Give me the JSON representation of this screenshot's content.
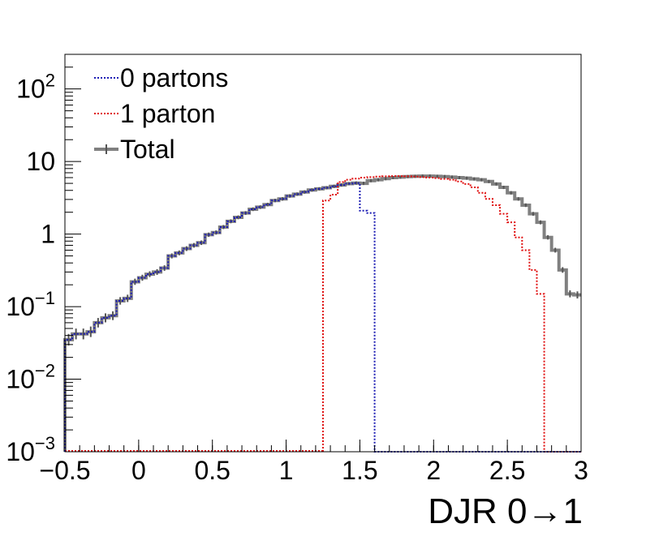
{
  "chart_data": {
    "type": "histogram-step-line",
    "xlabel": "DJR 0→1",
    "ylabel": "",
    "xlim": [
      -0.5,
      3.0
    ],
    "ylim": [
      0.001,
      300
    ],
    "ylog": true,
    "grid": false,
    "legend_position": "top-left",
    "x_ticks": [
      {
        "value": -0.5,
        "label": "−0.5"
      },
      {
        "value": 0,
        "label": "0"
      },
      {
        "value": 0.5,
        "label": "0.5"
      },
      {
        "value": 1,
        "label": "1"
      },
      {
        "value": 1.5,
        "label": "1.5"
      },
      {
        "value": 2,
        "label": "2"
      },
      {
        "value": 2.5,
        "label": "2.5"
      },
      {
        "value": 3,
        "label": "3"
      }
    ],
    "y_ticks": [
      {
        "value": 0.001,
        "base": "10",
        "exp": "−3"
      },
      {
        "value": 0.01,
        "base": "10",
        "exp": "−2"
      },
      {
        "value": 0.1,
        "base": "10",
        "exp": "−1"
      },
      {
        "value": 1,
        "base": "1",
        "exp": ""
      },
      {
        "value": 10,
        "base": "10",
        "exp": ""
      },
      {
        "value": 100,
        "base": "10",
        "exp": "2"
      }
    ],
    "bin_width": 0.05,
    "series": [
      {
        "name": "0 partons",
        "color": "#1c1cb4",
        "style": "dotted",
        "x_start": -0.5,
        "values": [
          0.035,
          0.042,
          0.042,
          0.045,
          0.06,
          0.07,
          0.075,
          0.12,
          0.13,
          0.22,
          0.25,
          0.28,
          0.3,
          0.34,
          0.5,
          0.55,
          0.63,
          0.7,
          0.76,
          0.98,
          1.05,
          1.25,
          1.5,
          1.7,
          1.95,
          2.2,
          2.35,
          2.55,
          2.9,
          3.05,
          3.35,
          3.55,
          3.8,
          4.05,
          4.2,
          4.35,
          4.55,
          4.75,
          4.95,
          5.05,
          2.1,
          1.95
        ]
      },
      {
        "name": "1 parton",
        "color": "#e01010",
        "style": "dotted",
        "x_start": 1.25,
        "values": [
          2.9,
          3.5,
          5.2,
          5.6,
          5.8,
          6.0,
          6.1,
          6.2,
          6.25,
          6.3,
          6.3,
          6.25,
          6.2,
          6.1,
          6.0,
          5.9,
          5.75,
          5.6,
          5.3,
          4.9,
          4.4,
          3.7,
          3.05,
          2.5,
          1.9,
          1.45,
          0.9,
          0.6,
          0.32,
          0.15
        ]
      },
      {
        "name": "Total",
        "color": "#808080",
        "style": "solid",
        "x_start": -0.5,
        "values": [
          0.035,
          0.042,
          0.042,
          0.045,
          0.06,
          0.07,
          0.075,
          0.12,
          0.13,
          0.22,
          0.25,
          0.28,
          0.3,
          0.34,
          0.5,
          0.55,
          0.63,
          0.7,
          0.76,
          0.98,
          1.05,
          1.25,
          1.5,
          1.7,
          1.95,
          2.2,
          2.35,
          2.55,
          2.9,
          3.05,
          3.35,
          3.55,
          3.8,
          4.05,
          4.2,
          4.35,
          4.55,
          4.75,
          4.95,
          5.05,
          5.0,
          5.45,
          5.6,
          5.8,
          6.0,
          6.1,
          6.2,
          6.25,
          6.3,
          6.3,
          6.25,
          6.2,
          6.1,
          6.0,
          5.9,
          5.75,
          5.6,
          5.3,
          4.9,
          4.4,
          3.7,
          3.05,
          2.5,
          1.9,
          1.45,
          0.9,
          0.6,
          0.32,
          0.15,
          0.145
        ]
      }
    ]
  }
}
